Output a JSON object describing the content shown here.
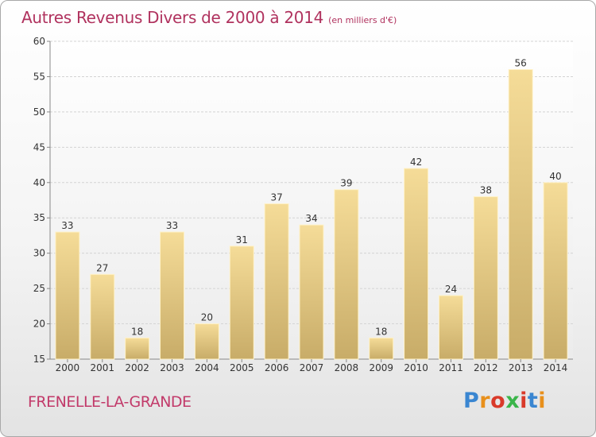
{
  "chart_data": {
    "type": "bar",
    "title": "Autres Revenus Divers de 2000 à 2014",
    "unit_note": "(en milliers d'€)",
    "categories": [
      "2000",
      "2001",
      "2002",
      "2003",
      "2004",
      "2005",
      "2006",
      "2007",
      "2008",
      "2009",
      "2010",
      "2011",
      "2012",
      "2013",
      "2014"
    ],
    "values": [
      33,
      27,
      18,
      33,
      20,
      31,
      37,
      34,
      39,
      18,
      42,
      24,
      38,
      56,
      40
    ],
    "ylim": [
      15,
      60
    ],
    "yticks": [
      "15",
      "20",
      "25",
      "30",
      "35",
      "40",
      "45",
      "50",
      "55",
      "60"
    ],
    "grid": true,
    "bar_color_top": "#f5dc98",
    "bar_color_bottom": "#c8ac68"
  },
  "footer": {
    "town": "FRENELLE-LA-GRANDE",
    "logo": "Proxiti",
    "logo_colors": [
      "#3a86d1",
      "#e8901c",
      "#d93a2a",
      "#3ab54a",
      "#d93a2a",
      "#3a86d1",
      "#e8901c"
    ]
  }
}
